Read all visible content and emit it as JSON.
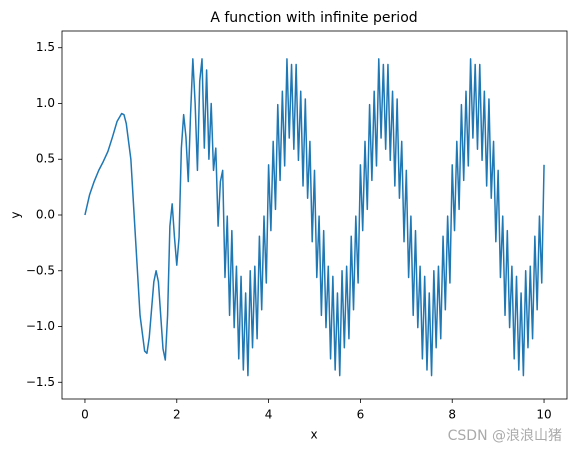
{
  "chart_data": {
    "type": "line",
    "title": "A function with infinite period",
    "x_label": "x",
    "y_label": "y",
    "xlim": [
      -0.5,
      10.5
    ],
    "ylim": [
      -1.65,
      1.65
    ],
    "xticks": [
      0,
      2,
      4,
      6,
      8,
      10
    ],
    "yticks": [
      {
        "value": -1.5,
        "label": "−1.5"
      },
      {
        "value": -1,
        "label": "−1.0"
      },
      {
        "value": -0.5,
        "label": "−0.5"
      },
      {
        "value": 0,
        "label": "0.0"
      },
      {
        "value": 0.5,
        "label": "0.5"
      },
      {
        "value": 1,
        "label": "1.0"
      },
      {
        "value": 1.5,
        "label": "1.5"
      }
    ],
    "grid": false,
    "series": [
      {
        "color": "#1f77b4",
        "x": [
          0,
          0.1,
          0.2,
          0.3,
          0.4,
          0.5,
          0.6,
          0.7,
          0.8,
          0.85,
          0.9,
          1.0,
          1.1,
          1.2,
          1.3,
          1.35,
          1.4,
          1.5,
          1.55,
          1.6,
          1.7,
          1.75,
          1.8,
          1.85,
          1.9,
          1.95,
          2.0,
          2.05,
          2.1,
          2.15,
          2.2,
          2.25,
          2.3,
          2.35,
          2.4,
          2.45,
          2.5,
          2.55,
          2.6,
          2.65,
          2.7,
          2.75,
          2.8,
          2.85,
          2.9,
          2.95,
          3.0,
          3.05,
          3.1,
          3.15,
          3.2,
          3.25,
          3.3,
          3.35,
          3.4,
          3.45,
          3.5,
          3.55,
          3.6,
          3.65,
          3.7,
          3.75,
          3.8,
          3.85,
          3.9,
          3.95,
          4.0,
          4.05,
          4.1,
          4.15,
          4.2,
          4.25,
          4.3,
          4.35,
          4.4,
          4.45,
          4.5,
          4.55,
          4.6,
          4.65,
          4.7,
          4.75,
          4.8,
          4.85,
          4.9,
          4.95,
          5.0,
          5.05,
          5.1,
          5.15,
          5.2,
          5.25,
          5.3,
          5.35,
          5.4,
          5.45,
          5.5,
          5.55,
          5.6,
          5.65,
          5.7,
          5.75,
          5.8,
          5.85,
          5.9,
          5.95,
          6.0,
          6.05,
          6.1,
          6.15,
          6.2,
          6.25,
          6.3,
          6.35,
          6.4,
          6.45,
          6.5,
          6.55,
          6.6,
          6.65,
          6.7,
          6.75,
          6.8,
          6.85,
          6.9,
          6.95,
          7.0,
          7.05,
          7.1,
          7.15,
          7.2,
          7.25,
          7.3,
          7.35,
          7.4,
          7.45,
          7.5,
          7.55,
          7.6,
          7.65,
          7.7,
          7.75,
          7.8,
          7.85,
          7.9,
          7.95,
          8.0,
          8.05,
          8.1,
          8.15,
          8.2,
          8.25,
          8.3,
          8.35,
          8.4,
          8.45,
          8.5,
          8.55,
          8.6,
          8.65,
          8.7,
          8.75,
          8.8,
          8.85,
          8.9,
          8.95,
          9.0,
          9.05,
          9.1,
          9.15,
          9.2,
          9.25,
          9.3,
          9.35,
          9.4,
          9.45,
          9.5,
          9.55,
          9.6,
          9.65,
          9.7,
          9.75,
          9.8,
          9.85,
          9.9,
          9.95,
          10.0
        ],
        "values": [
          0,
          0.18,
          0.3,
          0.4,
          0.48,
          0.57,
          0.7,
          0.84,
          0.91,
          0.9,
          0.82,
          0.5,
          -0.2,
          -0.9,
          -1.22,
          -1.24,
          -1.1,
          -0.6,
          -0.5,
          -0.6,
          -1.2,
          -1.3,
          -0.9,
          -0.1,
          0.1,
          -0.2,
          -0.45,
          -0.2,
          0.6,
          0.9,
          0.7,
          0.3,
          0.9,
          1.4,
          1.0,
          0.4,
          1.2,
          1.4,
          0.6,
          1.3,
          0.5,
          1.0,
          0.4,
          0.6,
          -0.1,
          0.3,
          0.4,
          -0.56,
          -0.01,
          -0.9,
          -0.14,
          -1.01,
          -0.46,
          -1.29,
          -0.55,
          -1.39,
          -0.7,
          -1.44,
          -0.5,
          -1.19,
          -0.46,
          -1.11,
          -0.19,
          -0.85,
          -0.01,
          -0.61,
          0.45,
          -0.14,
          0.66,
          0.05,
          0.99,
          0.31,
          1.11,
          0.44,
          1.4,
          0.69,
          1.35,
          0.59,
          1.35,
          0.49,
          1.11,
          0.26,
          1.04,
          0.15,
          0.66,
          -0.24,
          0.4,
          -0.56,
          -0.01,
          -0.9,
          -0.14,
          -1.01,
          -0.46,
          -1.29,
          -0.55,
          -1.39,
          -0.7,
          -1.44,
          -0.5,
          -1.19,
          -0.46,
          -1.11,
          -0.19,
          -0.85,
          -0.01,
          -0.61,
          0.45,
          -0.14,
          0.66,
          0.05,
          0.99,
          0.31,
          1.11,
          0.44,
          1.4,
          0.69,
          1.35,
          0.59,
          1.35,
          0.49,
          1.11,
          0.26,
          1.04,
          0.15,
          0.66,
          -0.24,
          0.4,
          -0.56,
          -0.01,
          -0.9,
          -0.14,
          -1.01,
          -0.46,
          -1.29,
          -0.55,
          -1.39,
          -0.7,
          -1.44,
          -0.5,
          -1.19,
          -0.46,
          -1.11,
          -0.19,
          -0.85,
          -0.01,
          -0.61,
          0.45,
          -0.14,
          0.66,
          0.05,
          0.99,
          0.31,
          1.11,
          0.44,
          1.4,
          0.69,
          1.35,
          0.59,
          1.35,
          0.49,
          1.11,
          0.26,
          1.04,
          0.15,
          0.66,
          -0.24,
          0.4,
          -0.56,
          -0.01,
          -0.9,
          -0.14,
          -1.01,
          -0.46,
          -1.29,
          -0.55,
          -1.39,
          -0.7,
          -1.44,
          -0.5,
          -1.19,
          -0.46,
          -1.11,
          -0.19,
          -0.85,
          -0.01,
          -0.61,
          0.45
        ]
      }
    ]
  },
  "watermark": "CSDN @浪浪山猪"
}
